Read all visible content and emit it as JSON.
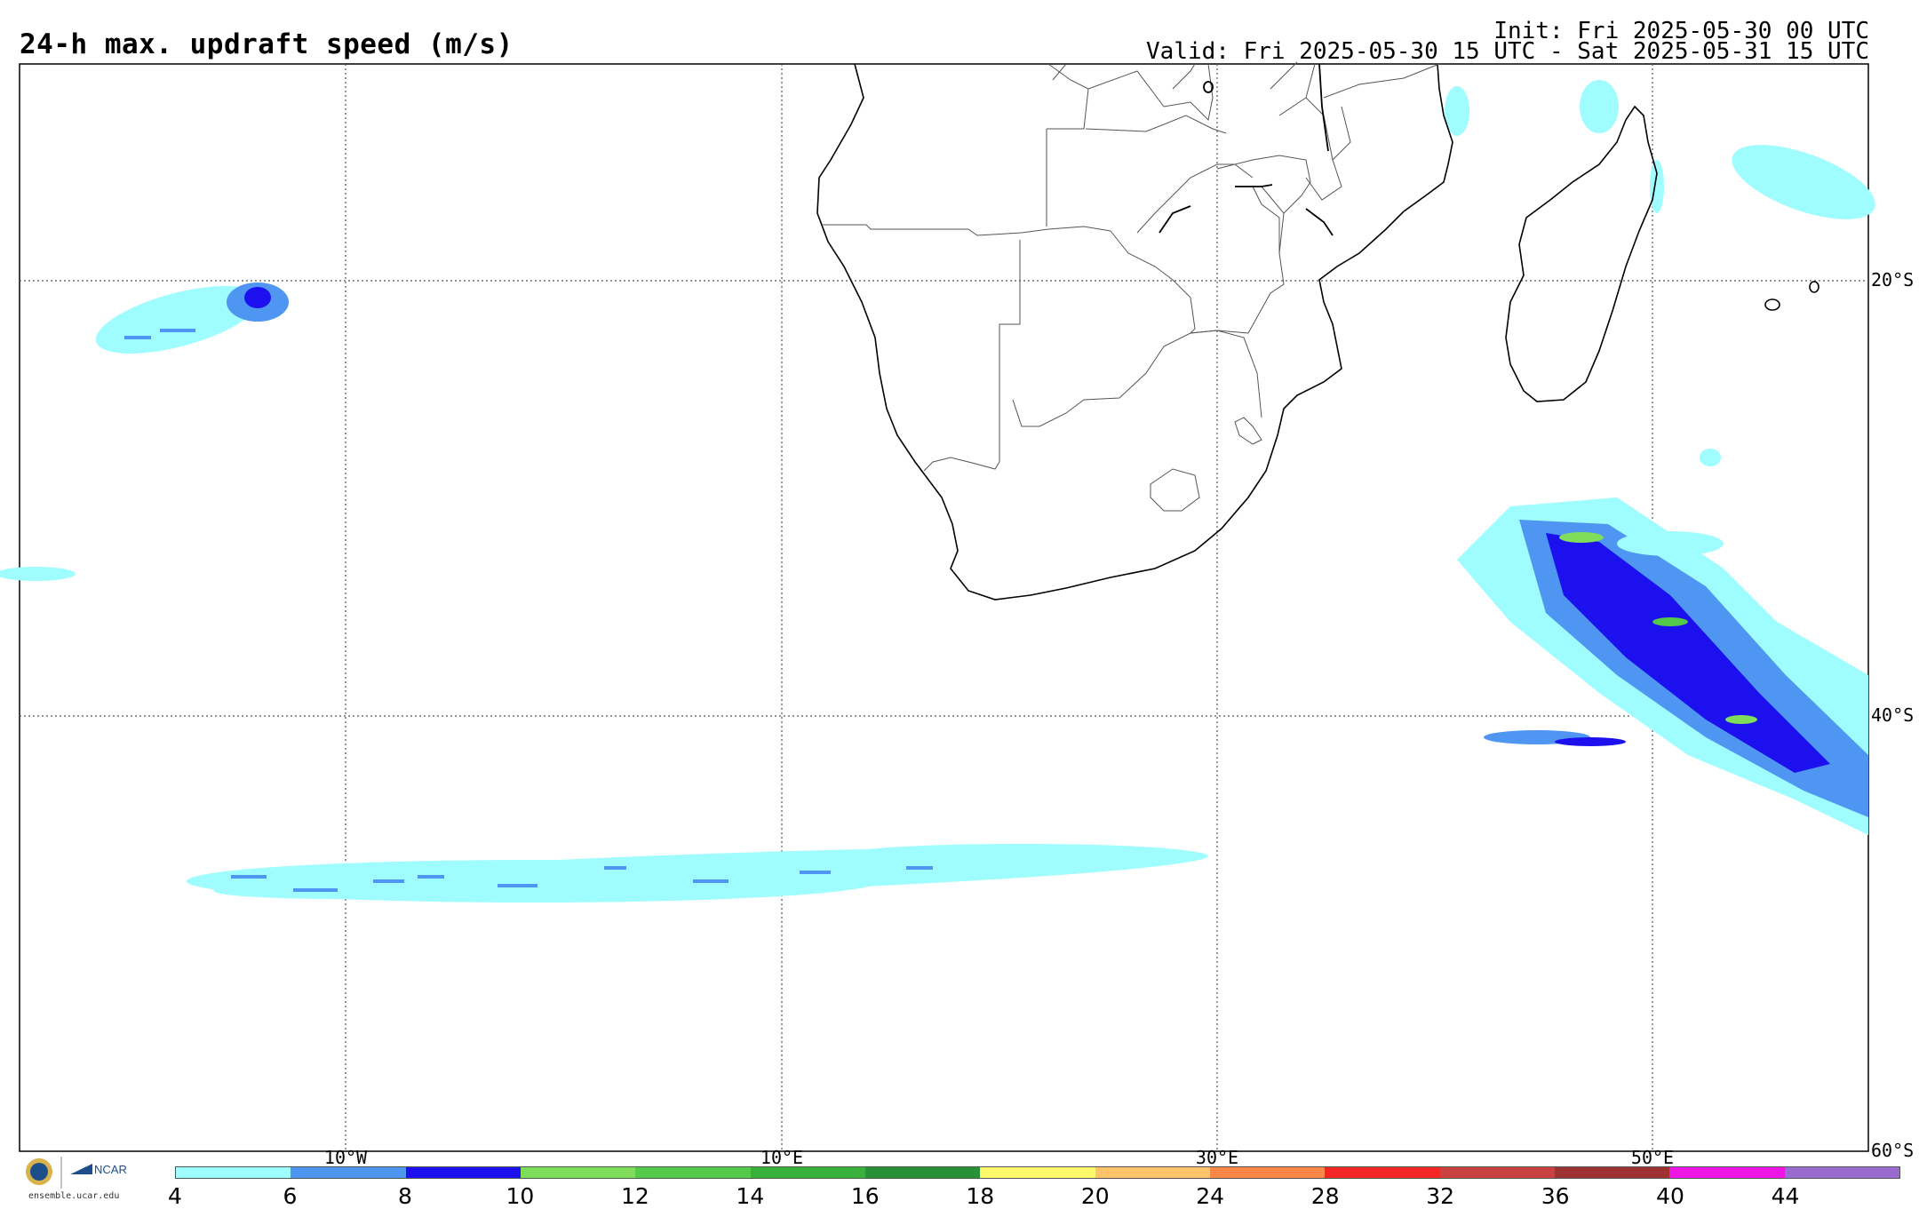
{
  "title": "24-h max. updraft speed (m/s)",
  "init": "Init: Fri 2025-05-30 00 UTC",
  "valid": "Valid: Fri 2025-05-30 15 UTC - Sat 2025-05-31 15 UTC",
  "lat_labels": [
    "20°S",
    "40°S",
    "60°S"
  ],
  "lon_labels": [
    "10°W",
    "10°E",
    "30°E",
    "50°E"
  ],
  "colorbar": {
    "ticks": [
      "4",
      "6",
      "8",
      "10",
      "12",
      "14",
      "16",
      "18",
      "20",
      "24",
      "28",
      "32",
      "36",
      "40",
      "44"
    ],
    "colors": [
      "#9ffcff",
      "#4f95f2",
      "#1d10ee",
      "#7fdd5a",
      "#55c94a",
      "#39b23d",
      "#27913a",
      "#fbf96c",
      "#fdc56a",
      "#fb8748",
      "#f42727",
      "#c94141",
      "#9e3131",
      "#ef15e4",
      "#9a6bcf"
    ]
  },
  "logo": {
    "org": "NCAR",
    "url": "ensemble.ucar.edu"
  }
}
